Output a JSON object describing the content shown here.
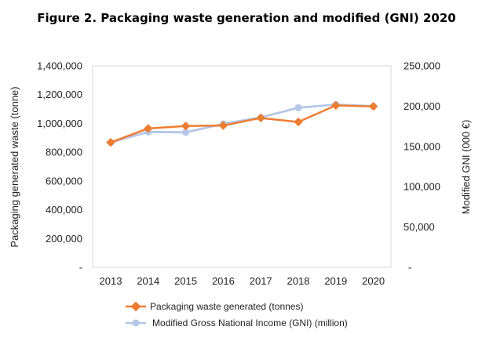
{
  "chart_data": {
    "type": "line",
    "title": "Figure 2. Packaging waste generation and modified (GNI) 2020",
    "categories": [
      "2013",
      "2014",
      "2015",
      "2016",
      "2017",
      "2018",
      "2019",
      "2020"
    ],
    "ylabel_left": "Packaging generated waste (tonne)",
    "ylabel_right": "Modified GNI (000 €)",
    "ylim_left": [
      0,
      1400000
    ],
    "ylim_right": [
      0,
      250000
    ],
    "yticks_left": [
      "-",
      "200,000",
      "400,000",
      "600,000",
      "800,000",
      "1,000,000",
      "1,200,000",
      "1,400,000"
    ],
    "yticks_right": [
      "-",
      "50,000",
      "100,000",
      "150,000",
      "200,000",
      "250,000"
    ],
    "grid": false,
    "legend_position": "bottom",
    "series": [
      {
        "name": "Packaging waste generated (tonnes)",
        "axis": "left",
        "color": "#ED7D31",
        "values": [
          868000,
          965000,
          982000,
          985000,
          1038000,
          1010000,
          1125000,
          1118000
        ]
      },
      {
        "name": "Modified Gross National Income (GNI) (million)",
        "axis": "right",
        "color": "#B4C7E7",
        "values": [
          155000,
          168000,
          167500,
          178000,
          186000,
          198000,
          202000,
          200000
        ]
      }
    ]
  }
}
